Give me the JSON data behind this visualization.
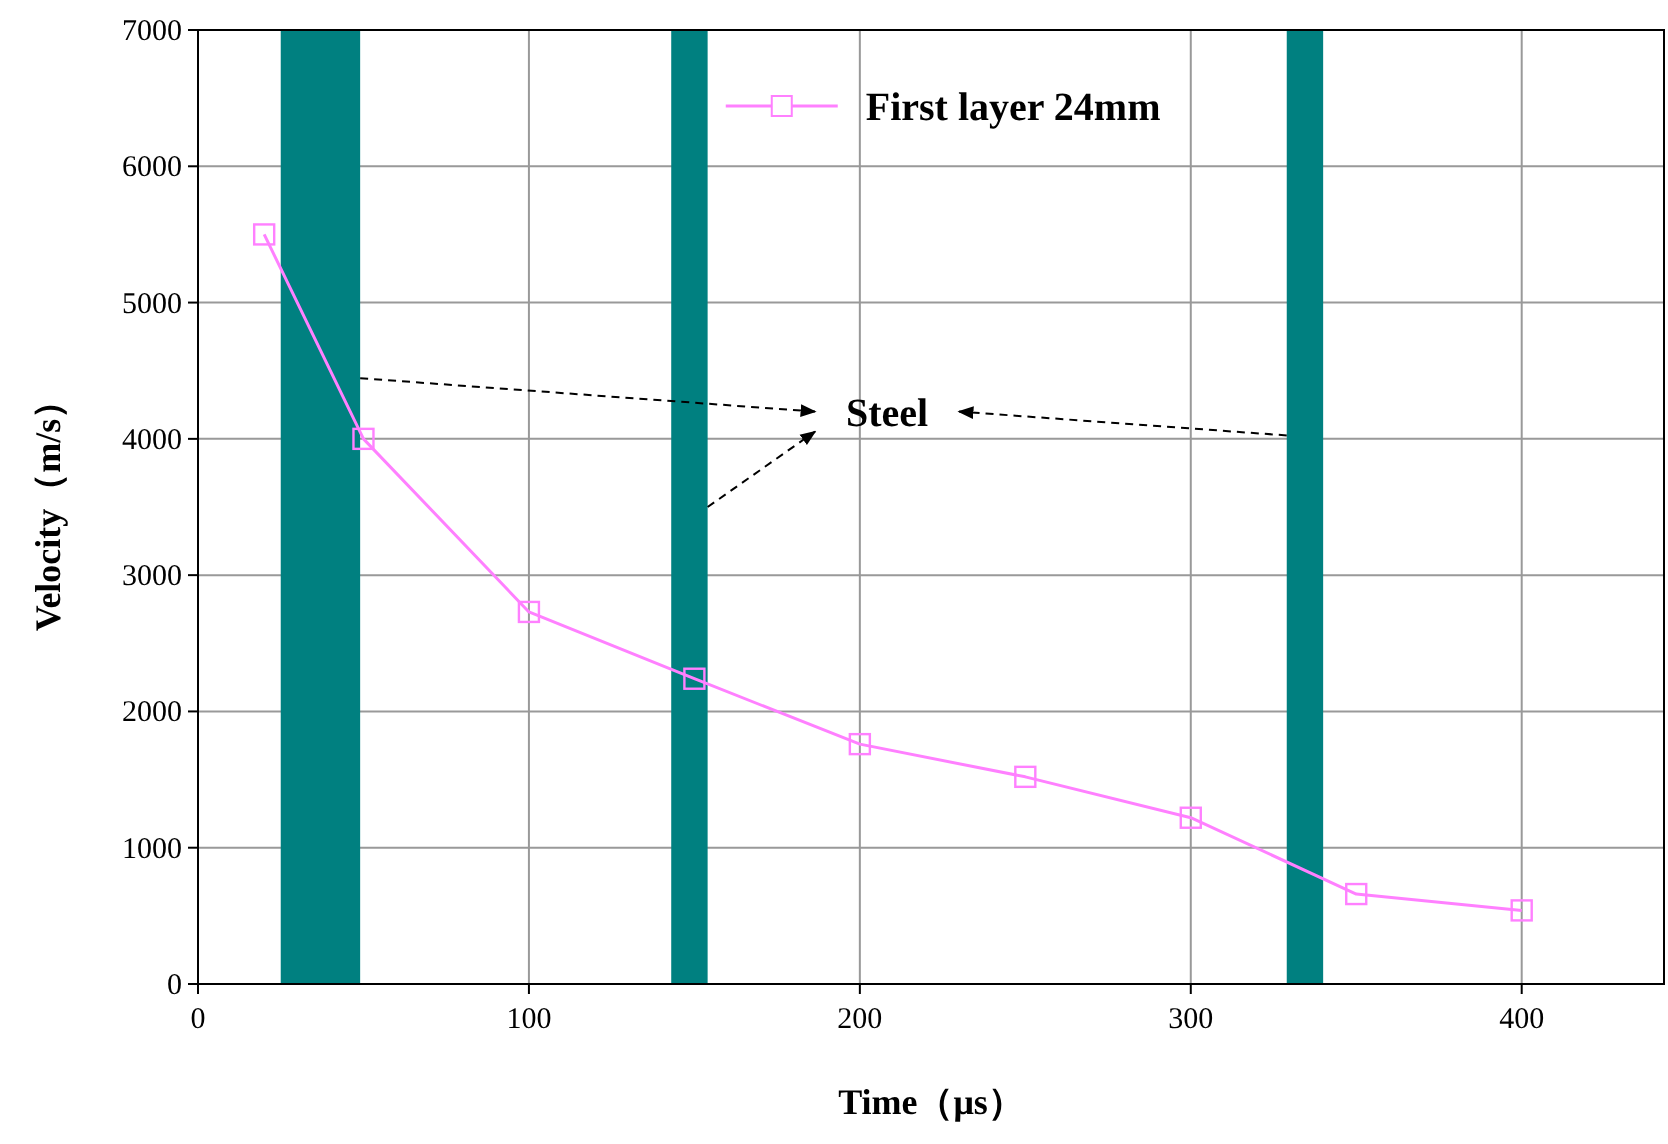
{
  "chart_data": {
    "type": "line",
    "xlabel": "Time（μs）",
    "ylabel": "Velocity（m/s）",
    "x": [
      20,
      50,
      100,
      150,
      200,
      250,
      300,
      350,
      400
    ],
    "series": [
      {
        "name": "First layer 24mm",
        "color": "#ff80ff",
        "values": [
          5500,
          4000,
          2730,
          2240,
          1760,
          1520,
          1220,
          660,
          540
        ]
      }
    ],
    "xlim": [
      0,
      443
    ],
    "xticks": [
      0,
      100,
      200,
      300,
      400
    ],
    "ylim": [
      0,
      7000
    ],
    "yticks": [
      0,
      1000,
      2000,
      3000,
      4000,
      5000,
      6000,
      7000
    ],
    "bands": [
      {
        "axis": "x",
        "from": 25,
        "to": 49,
        "color": "#008080"
      },
      {
        "axis": "x",
        "from": 143,
        "to": 154,
        "color": "#008080"
      },
      {
        "axis": "x",
        "from": 329,
        "to": 340,
        "color": "#008080"
      }
    ],
    "annotations": [
      "Steel"
    ],
    "grid": true,
    "legend": "top right",
    "marker": "square",
    "line_style": "solid"
  }
}
